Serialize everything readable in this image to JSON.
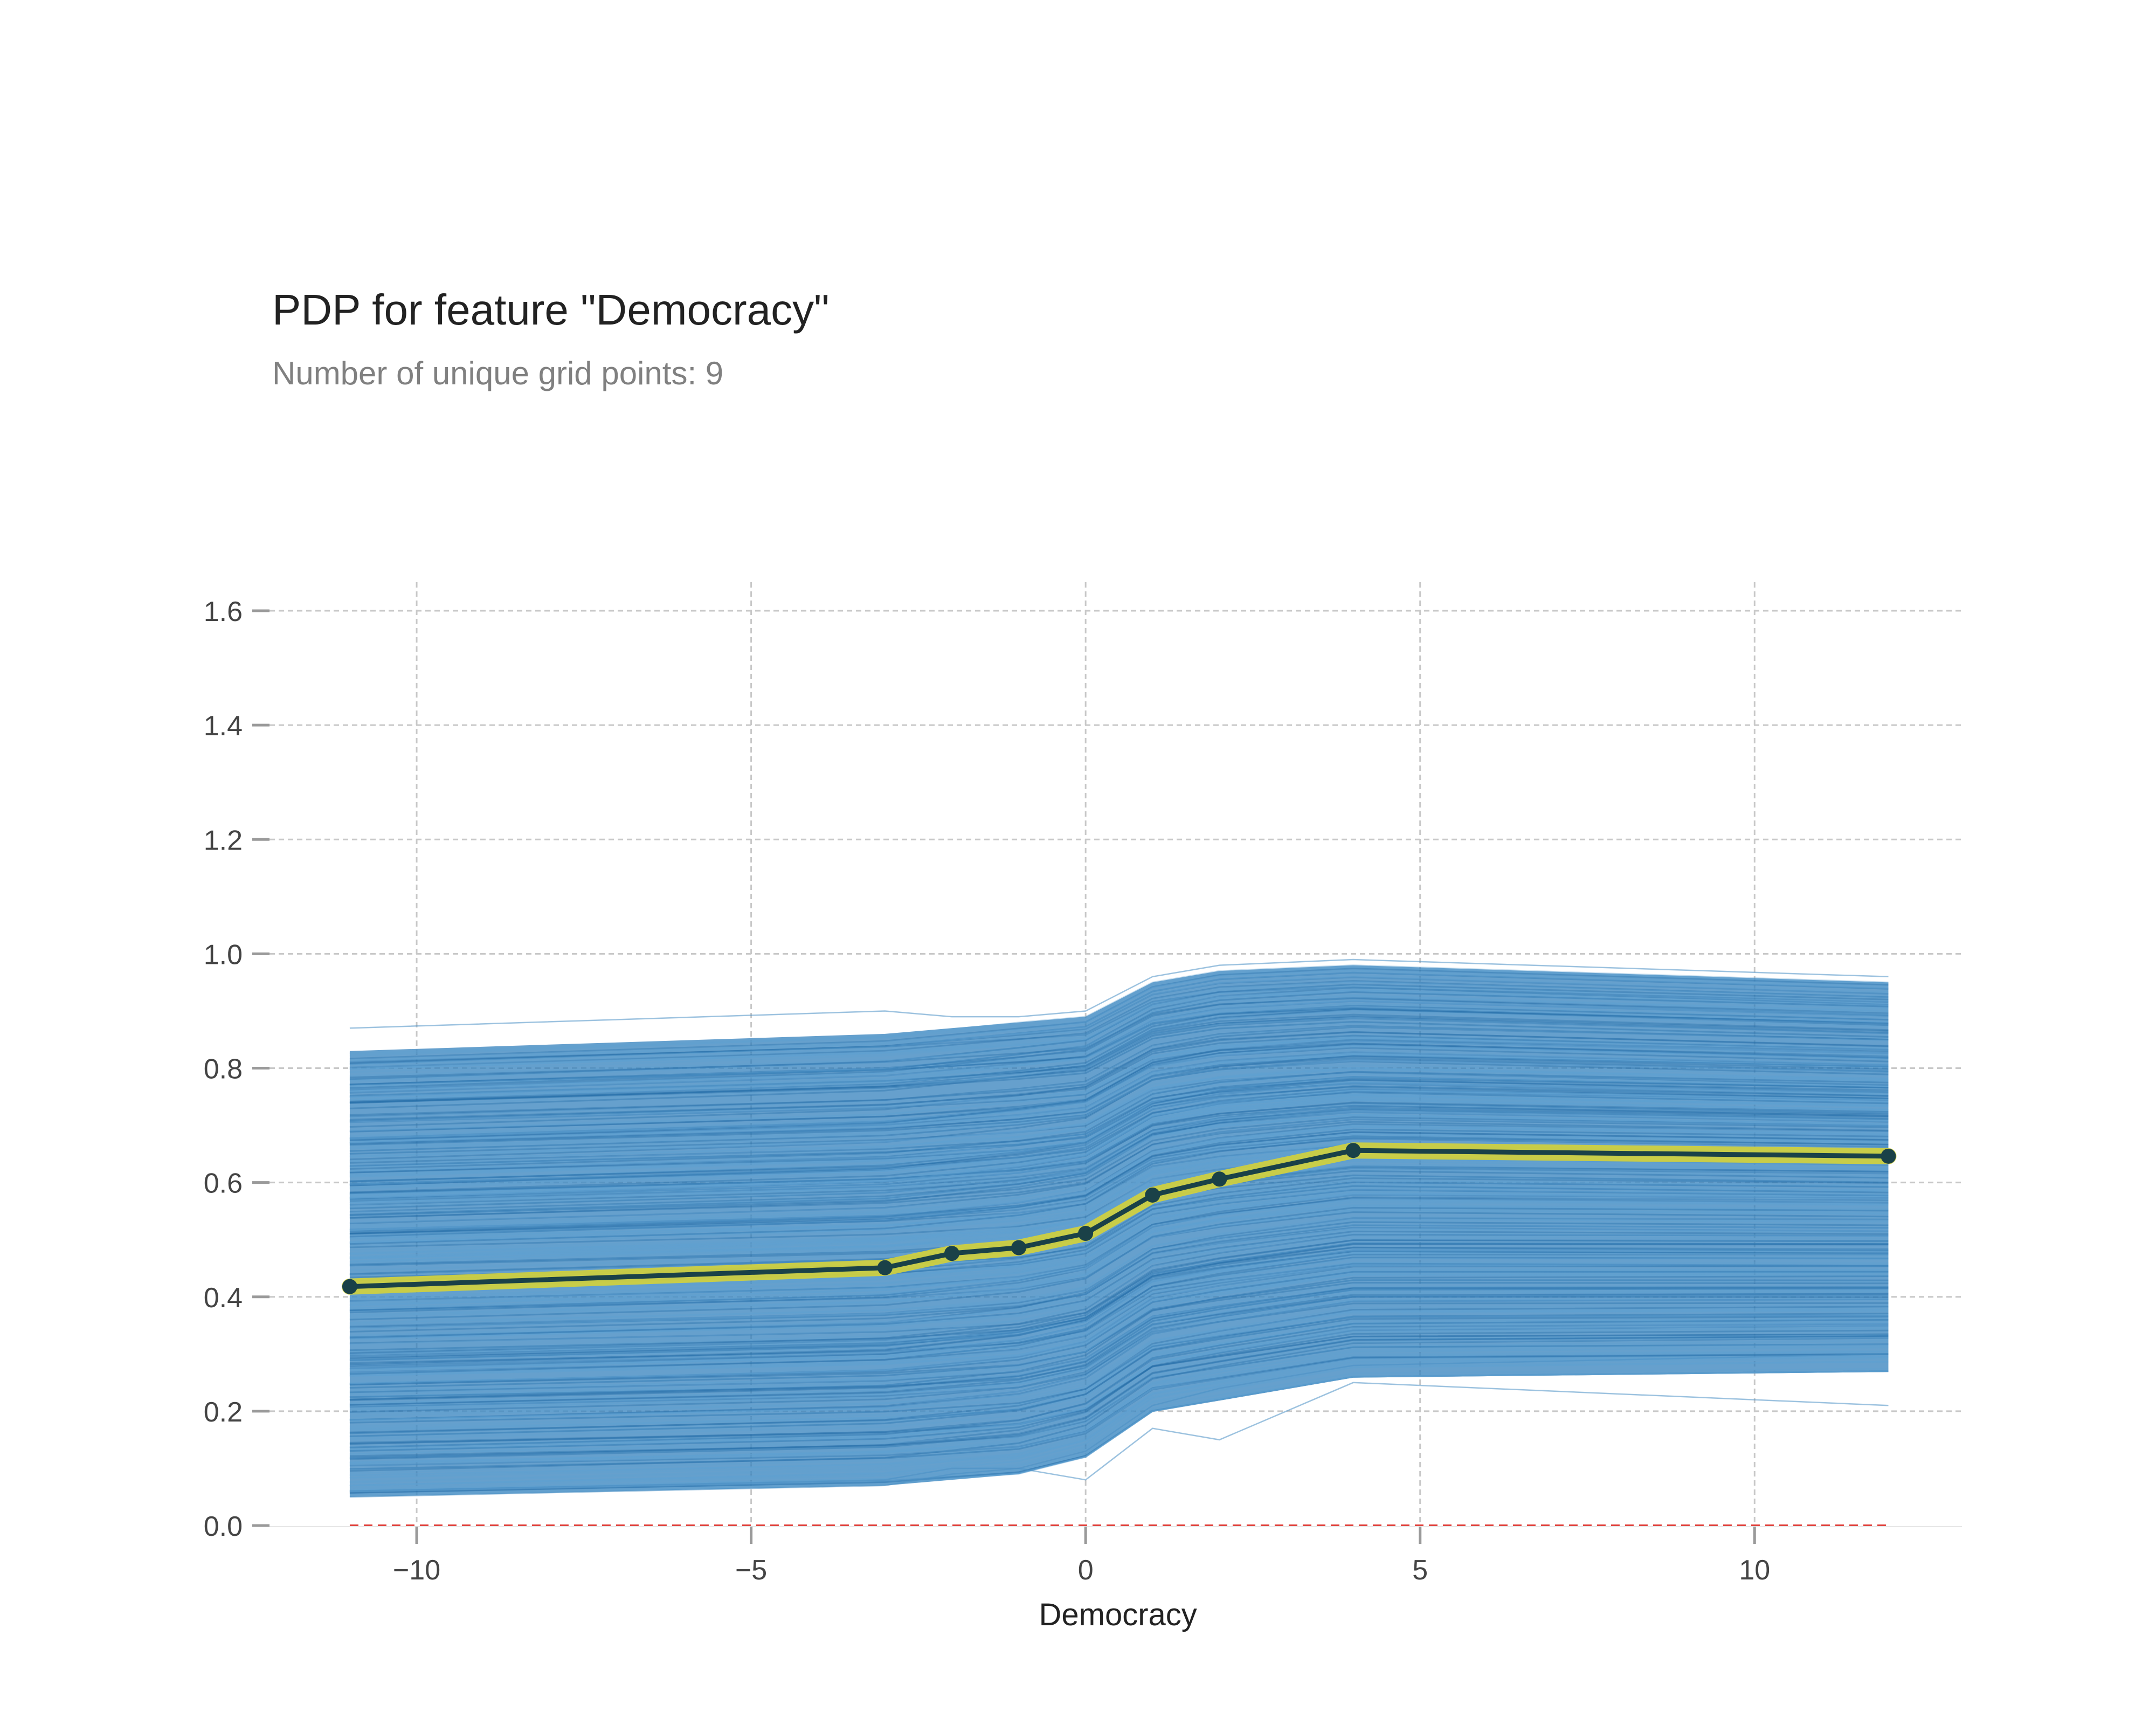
{
  "chart_data": {
    "type": "line",
    "title": "PDP for feature \"Democracy\"",
    "subtitle": "Number of unique grid points: 9",
    "xlabel": "Democracy",
    "ylabel": "",
    "xlim": [
      -12.2,
      13.1
    ],
    "ylim": [
      0.0,
      1.65
    ],
    "x_ticks": [
      -10,
      -5,
      0,
      5,
      10
    ],
    "x_tick_labels": [
      "−10",
      "−5",
      "0",
      "5",
      "10"
    ],
    "y_ticks": [
      0.0,
      0.2,
      0.4,
      0.6,
      0.8,
      1.0,
      1.2,
      1.4,
      1.6
    ],
    "y_tick_labels": [
      "0.0",
      "0.2",
      "0.4",
      "0.6",
      "0.8",
      "1.0",
      "1.2",
      "1.4",
      "1.6"
    ],
    "grid": true,
    "x": [
      -11,
      -3,
      -2,
      -1,
      0,
      1,
      2,
      4,
      12
    ],
    "series": [
      {
        "role": "pdp",
        "values": [
          0.418,
          0.451,
          0.476,
          0.486,
          0.511,
          0.578,
          0.606,
          0.656,
          0.646
        ]
      },
      {
        "role": "ice-upper-envelope",
        "values": [
          0.83,
          0.86,
          0.87,
          0.88,
          0.89,
          0.95,
          0.97,
          0.98,
          0.95
        ]
      },
      {
        "role": "ice-lower-envelope",
        "values": [
          0.05,
          0.07,
          0.08,
          0.09,
          0.12,
          0.2,
          0.22,
          0.26,
          0.27
        ]
      },
      {
        "role": "reference-line",
        "values": [
          0.0,
          0.0,
          0.0,
          0.0,
          0.0,
          0.0,
          0.0,
          0.0,
          0.0
        ]
      }
    ],
    "colors": {
      "ice": "#2b7bba",
      "pdp_line": "#1a4148",
      "pdp_highlight": "#d4d23a",
      "reference_line": "#e0413c",
      "grid": "#c8c8c8",
      "tick_mark": "#9a9a9a",
      "tick_label": "#444444",
      "axis_label": "#222222"
    }
  }
}
